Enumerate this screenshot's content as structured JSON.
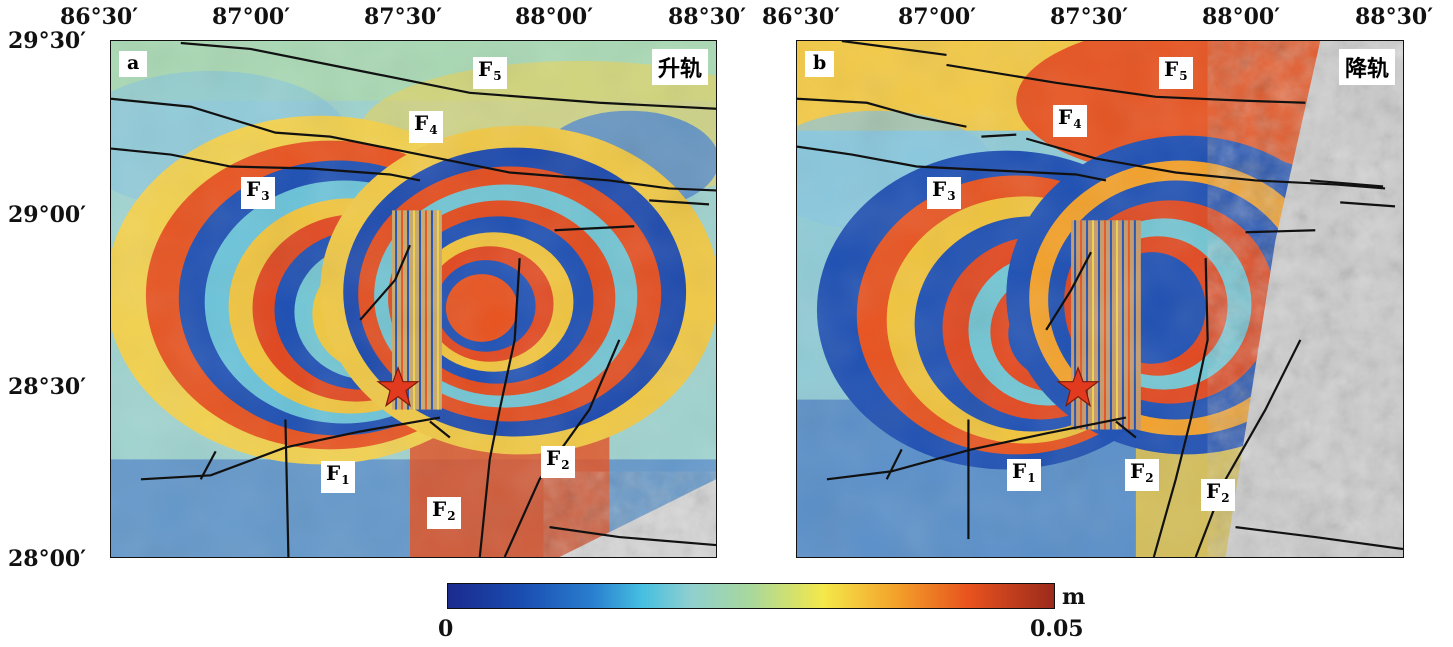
{
  "top_axis_ticks": [
    "86°30′",
    "87°00′",
    "87°30′",
    "88°00′",
    "88°30′"
  ],
  "left_axis_ticks": [
    "29°30′",
    "29°00′",
    "28°30′",
    "28°00′"
  ],
  "panels": [
    {
      "letter": "a",
      "orbit": "升轨",
      "faults": [
        {
          "f": "F",
          "n": "5"
        },
        {
          "f": "F",
          "n": "4"
        },
        {
          "f": "F",
          "n": "3"
        },
        {
          "f": "F",
          "n": "1"
        },
        {
          "f": "F",
          "n": "2"
        },
        {
          "f": "F",
          "n": "2"
        }
      ]
    },
    {
      "letter": "b",
      "orbit": "降轨",
      "faults": [
        {
          "f": "F",
          "n": "5"
        },
        {
          "f": "F",
          "n": "4"
        },
        {
          "f": "F",
          "n": "3"
        },
        {
          "f": "F",
          "n": "1"
        },
        {
          "f": "F",
          "n": "2"
        },
        {
          "f": "F",
          "n": "2"
        }
      ]
    }
  ],
  "colorbar": {
    "min": "0",
    "max": "0.05",
    "unit": "m",
    "colors": [
      "#1b2a8e",
      "#1a4cb0",
      "#2a7fd0",
      "#45bfe0",
      "#8fcfcf",
      "#a8d89c",
      "#f4e84a",
      "#f3a12a",
      "#e8521e",
      "#9b2a1c"
    ]
  },
  "epicenter_icon": "star-icon",
  "star_color": "#e23a1e"
}
